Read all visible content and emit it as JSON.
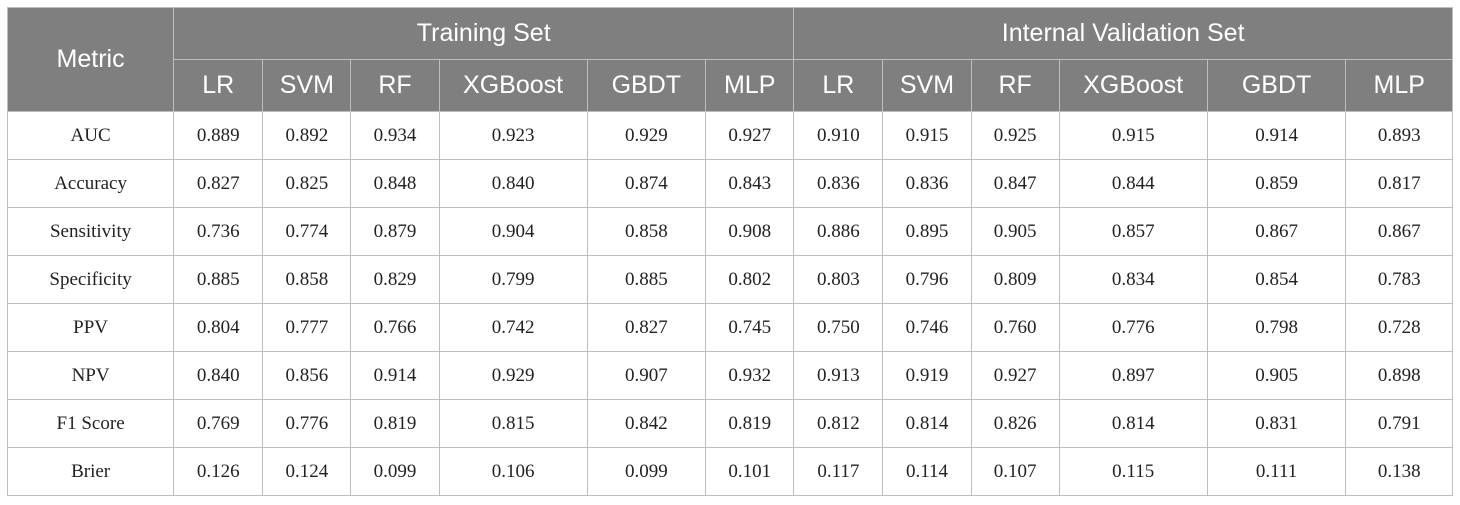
{
  "table": {
    "metric_header": "Metric",
    "groups": [
      {
        "label": "Training Set",
        "models": [
          "LR",
          "SVM",
          "RF",
          "XGBoost",
          "GBDT",
          "MLP"
        ]
      },
      {
        "label": "Internal Validation Set",
        "models": [
          "LR",
          "SVM",
          "RF",
          "XGBoost",
          "GBDT",
          "MLP"
        ]
      }
    ],
    "rows": [
      {
        "metric": "AUC",
        "values": [
          "0.889",
          "0.892",
          "0.934",
          "0.923",
          "0.929",
          "0.927",
          "0.910",
          "0.915",
          "0.925",
          "0.915",
          "0.914",
          "0.893"
        ]
      },
      {
        "metric": "Accuracy",
        "values": [
          "0.827",
          "0.825",
          "0.848",
          "0.840",
          "0.874",
          "0.843",
          "0.836",
          "0.836",
          "0.847",
          "0.844",
          "0.859",
          "0.817"
        ]
      },
      {
        "metric": "Sensitivity",
        "values": [
          "0.736",
          "0.774",
          "0.879",
          "0.904",
          "0.858",
          "0.908",
          "0.886",
          "0.895",
          "0.905",
          "0.857",
          "0.867",
          "0.867"
        ]
      },
      {
        "metric": "Specificity",
        "values": [
          "0.885",
          "0.858",
          "0.829",
          "0.799",
          "0.885",
          "0.802",
          "0.803",
          "0.796",
          "0.809",
          "0.834",
          "0.854",
          "0.783"
        ]
      },
      {
        "metric": "PPV",
        "values": [
          "0.804",
          "0.777",
          "0.766",
          "0.742",
          "0.827",
          "0.745",
          "0.750",
          "0.746",
          "0.760",
          "0.776",
          "0.798",
          "0.728"
        ]
      },
      {
        "metric": "NPV",
        "values": [
          "0.840",
          "0.856",
          "0.914",
          "0.929",
          "0.907",
          "0.932",
          "0.913",
          "0.919",
          "0.927",
          "0.897",
          "0.905",
          "0.898"
        ]
      },
      {
        "metric": "F1 Score",
        "values": [
          "0.769",
          "0.776",
          "0.819",
          "0.815",
          "0.842",
          "0.819",
          "0.812",
          "0.814",
          "0.826",
          "0.814",
          "0.831",
          "0.791"
        ]
      },
      {
        "metric": "Brier",
        "values": [
          "0.126",
          "0.124",
          "0.099",
          "0.106",
          "0.099",
          "0.101",
          "0.117",
          "0.114",
          "0.107",
          "0.115",
          "0.111",
          "0.138"
        ]
      }
    ]
  },
  "colors": {
    "header_bg": "#7f7f7f",
    "header_text": "#ffffff",
    "grid": "#bdbdbd",
    "body_text": "#222222"
  }
}
